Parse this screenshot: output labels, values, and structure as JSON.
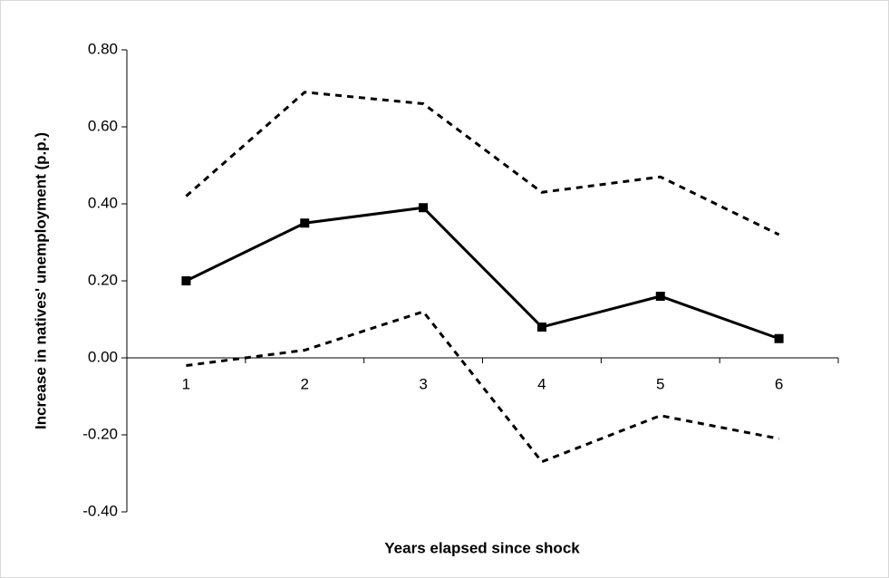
{
  "chart_data": {
    "type": "line",
    "x_label": "Years elapsed since shock",
    "y_label": "Increase in natives' unemployment (p.p.)",
    "categories": [
      "1",
      "2",
      "3",
      "4",
      "5",
      "6"
    ],
    "series": [
      {
        "color": "#000000",
        "style": "solid",
        "marker": "square",
        "values": [
          0.2,
          0.35,
          0.39,
          0.08,
          0.16,
          0.05
        ]
      },
      {
        "color": "#000000",
        "style": "dashed",
        "marker": "none",
        "values": [
          0.42,
          0.69,
          0.66,
          0.43,
          0.47,
          0.32
        ]
      },
      {
        "color": "#000000",
        "style": "dashed",
        "marker": "none",
        "values": [
          -0.02,
          0.02,
          0.12,
          -0.27,
          -0.15,
          -0.21
        ]
      }
    ],
    "ylim": [
      -0.4,
      0.8
    ],
    "yticks": [
      {
        "value": -0.4,
        "label": "-0.40"
      },
      {
        "value": -0.2,
        "label": "-0.20"
      },
      {
        "value": 0,
        "label": "0.00"
      },
      {
        "value": 0.2,
        "label": "0.20"
      },
      {
        "value": 0.4,
        "label": "0.40"
      },
      {
        "value": 0.6,
        "label": "0.60"
      },
      {
        "value": 0.8,
        "label": "0.80"
      }
    ],
    "grid": false
  }
}
